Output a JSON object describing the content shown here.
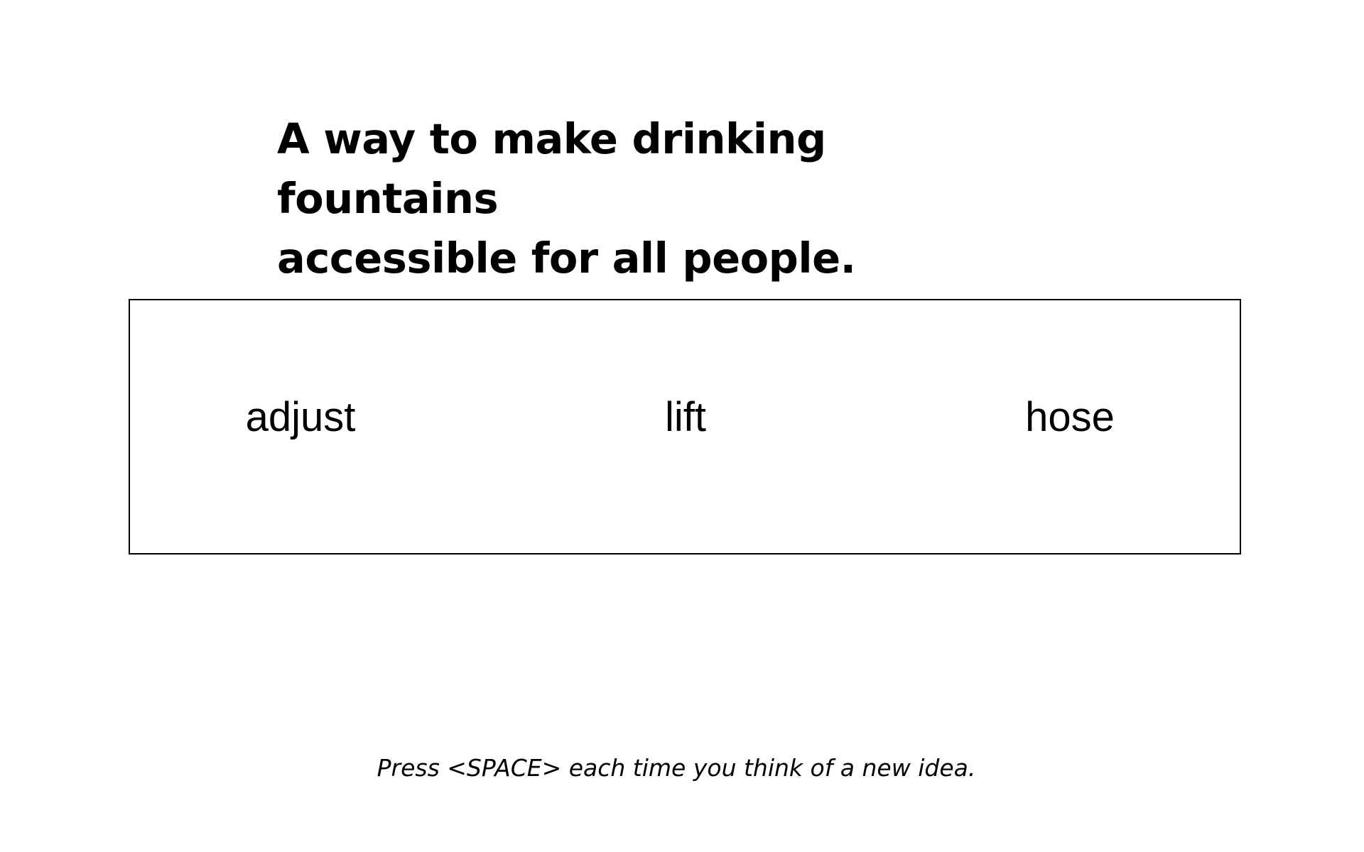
{
  "prompt": {
    "line1": "A way to make drinking fountains",
    "line2": "accessible for all people."
  },
  "cue_words": [
    "adjust",
    "lift",
    "hose"
  ],
  "instruction": "Press <SPACE> each time you think of a new idea."
}
